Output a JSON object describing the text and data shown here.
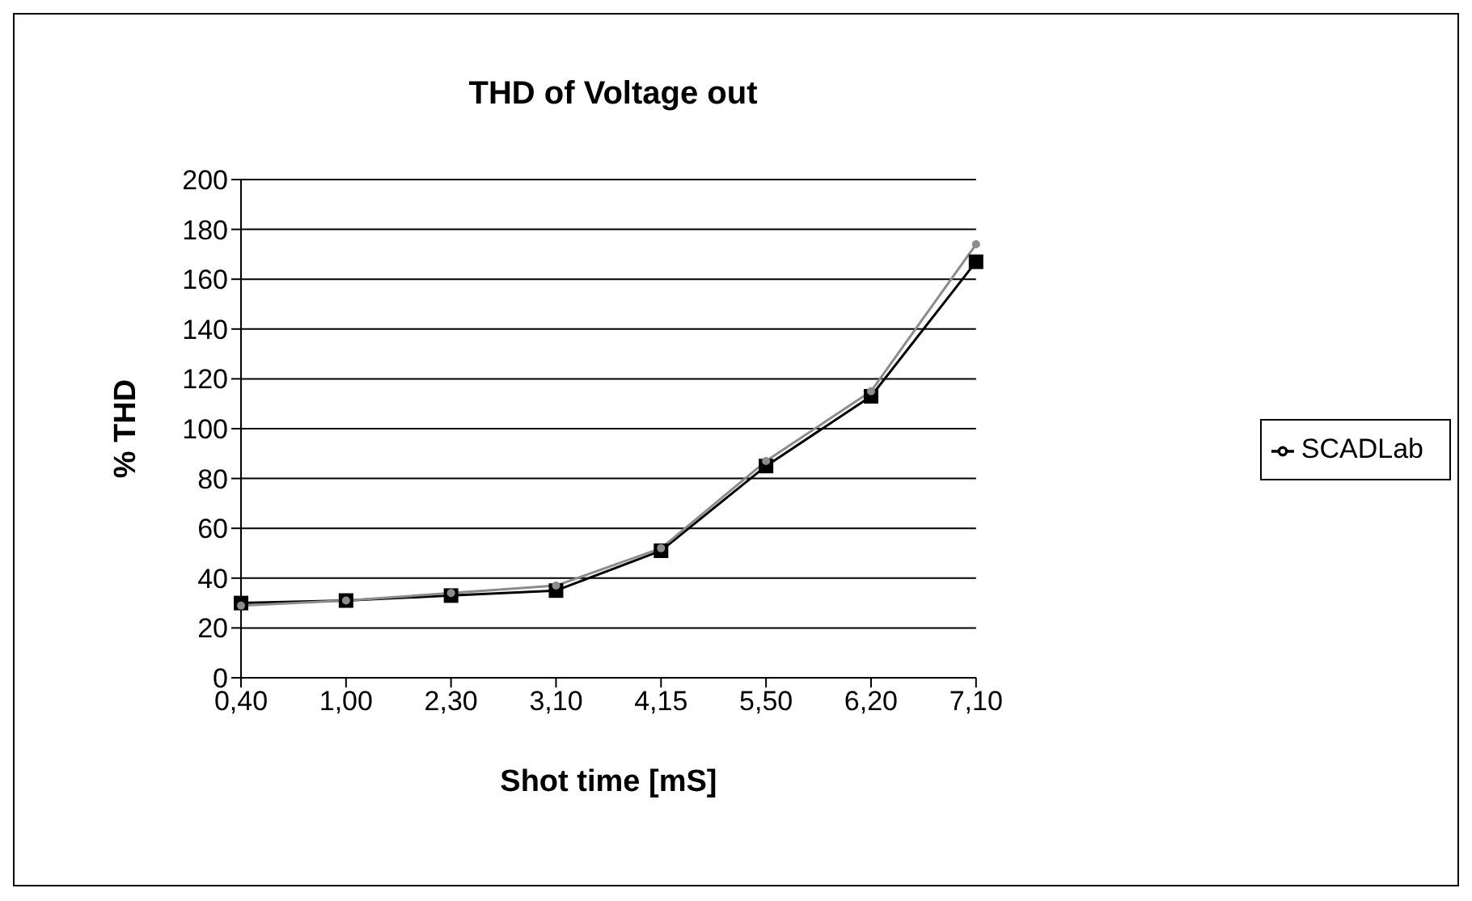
{
  "chart_data": {
    "type": "line",
    "title": "THD of Voltage out",
    "xlabel": "Shot time [mS]",
    "ylabel": "% THD",
    "categories": [
      "0,40",
      "1,00",
      "2,30",
      "3,10",
      "4,15",
      "5,50",
      "6,20",
      "7,10"
    ],
    "series": [
      {
        "name": "SCADLab",
        "color": "#000000",
        "marker": "square",
        "values": [
          30,
          31,
          33,
          35,
          51,
          85,
          113,
          167
        ]
      },
      {
        "color": "#8c8c8c",
        "marker": "circle",
        "values": [
          29,
          31,
          34,
          37,
          52,
          87,
          115,
          174
        ]
      }
    ],
    "ylim": [
      0,
      200
    ],
    "yticks": [
      0,
      20,
      40,
      60,
      80,
      100,
      120,
      140,
      160,
      180,
      200
    ],
    "grid": "y",
    "legend": "right",
    "line_style": "solid"
  }
}
